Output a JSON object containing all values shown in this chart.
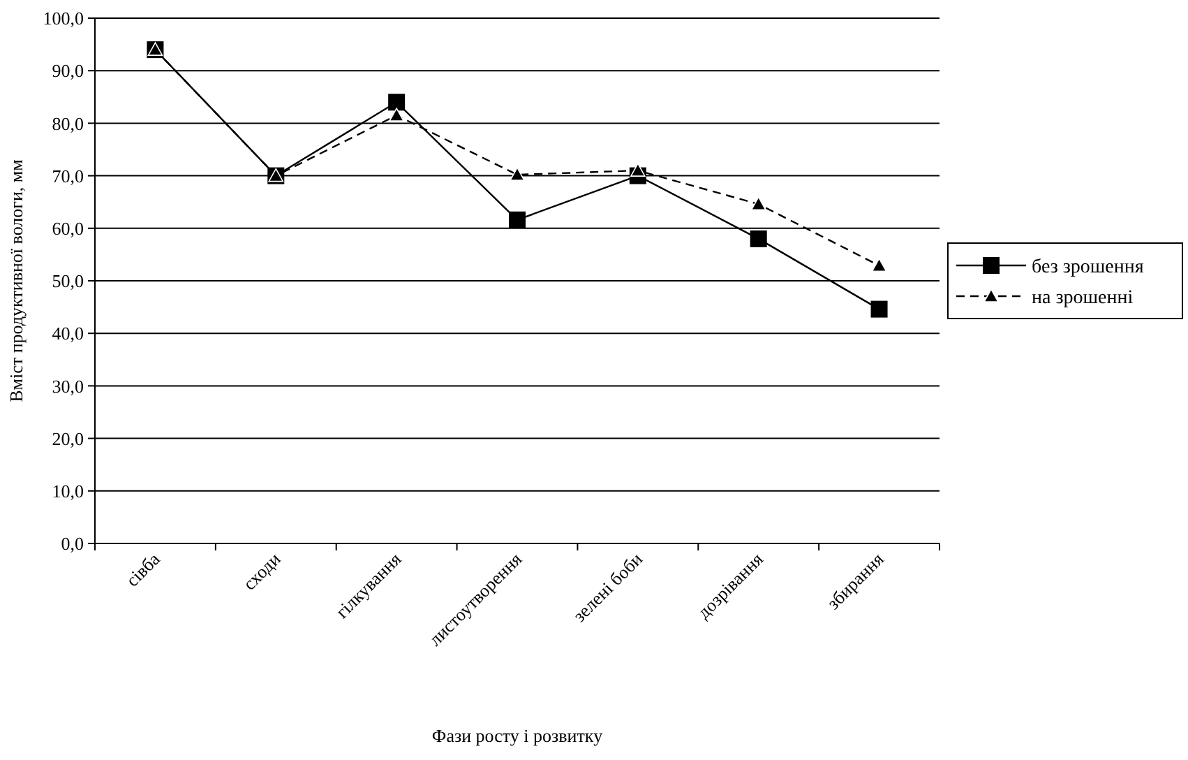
{
  "chart_data": {
    "type": "line",
    "xlabel": "Фази  росту і розвитку",
    "ylabel": "Вміст продуктивної вологи, мм",
    "categories": [
      "сівба",
      "сходи",
      "гілкування",
      "листоутворення",
      "зелені боби",
      "дозрівання",
      "збирання"
    ],
    "series": [
      {
        "name": "без зрошення",
        "color": "#000000",
        "marker": "square",
        "line_style": "solid",
        "values": [
          94,
          70,
          84,
          61.6,
          70,
          58,
          44.6
        ]
      },
      {
        "name": "на зрошенні",
        "color": "#000000",
        "marker": "triangle",
        "line_style": "dashed",
        "values": [
          94,
          70,
          81.5,
          70.2,
          71,
          64.6,
          52.9
        ]
      }
    ],
    "ylim": [
      0,
      100
    ],
    "yticks": [
      {
        "value": 0,
        "label": "0,0"
      },
      {
        "value": 10,
        "label": "10,0"
      },
      {
        "value": 20,
        "label": "20,0"
      },
      {
        "value": 30,
        "label": "30,0"
      },
      {
        "value": 40,
        "label": "40,0"
      },
      {
        "value": 50,
        "label": "50,0"
      },
      {
        "value": 60,
        "label": "60,0"
      },
      {
        "value": 70,
        "label": "70,0"
      },
      {
        "value": 80,
        "label": "80,0"
      },
      {
        "value": 90,
        "label": "90,0"
      },
      {
        "value": 100,
        "label": "100,0"
      }
    ],
    "grid": "y",
    "legend": "right"
  }
}
